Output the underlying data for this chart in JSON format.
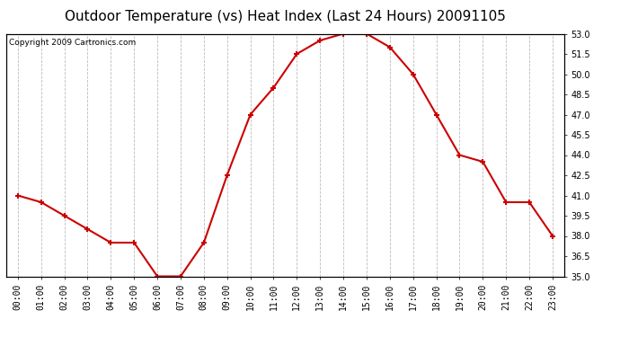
{
  "title": "Outdoor Temperature (vs) Heat Index (Last 24 Hours) 20091105",
  "copyright": "Copyright 2009 Cartronics.com",
  "hours": [
    "00:00",
    "01:00",
    "02:00",
    "03:00",
    "04:00",
    "05:00",
    "06:00",
    "07:00",
    "08:00",
    "09:00",
    "10:00",
    "11:00",
    "12:00",
    "13:00",
    "14:00",
    "15:00",
    "16:00",
    "17:00",
    "18:00",
    "19:00",
    "20:00",
    "21:00",
    "22:00",
    "23:00"
  ],
  "values": [
    41.0,
    40.5,
    39.5,
    38.5,
    37.5,
    37.5,
    35.0,
    35.0,
    37.5,
    42.5,
    47.0,
    49.0,
    51.5,
    52.5,
    53.0,
    53.0,
    52.0,
    50.0,
    47.0,
    44.0,
    43.5,
    40.5,
    40.5,
    38.0
  ],
  "line_color": "#cc0000",
  "marker": "+",
  "marker_size": 5,
  "ylim": [
    35.0,
    53.0
  ],
  "yticks": [
    35.0,
    36.5,
    38.0,
    39.5,
    41.0,
    42.5,
    44.0,
    45.5,
    47.0,
    48.5,
    50.0,
    51.5,
    53.0
  ],
  "background_color": "#ffffff",
  "grid_color": "#bbbbbb",
  "title_fontsize": 11,
  "copyright_fontsize": 6.5,
  "tick_fontsize": 7
}
